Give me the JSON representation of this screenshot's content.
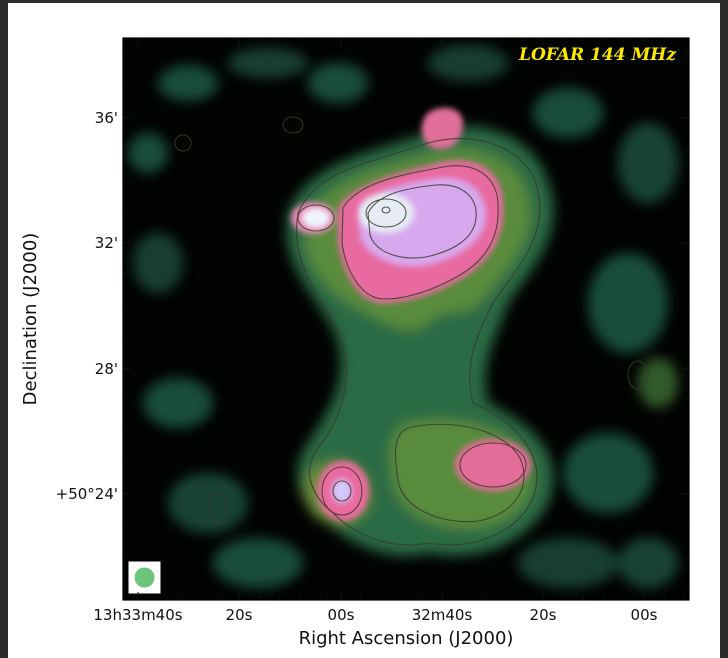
{
  "figure": {
    "panel_label": "LOFAR 144 MHz",
    "x_axis_title": "Right Ascension (J2000)",
    "y_axis_title": "Declination (J2000)",
    "x_ticks": [
      "13h33m40s",
      "20s",
      "00s",
      "32m40s",
      "20s",
      "00s"
    ],
    "y_ticks": [
      "36'",
      "32'",
      "28'",
      "+50°24'"
    ],
    "beam": {
      "color": "#6cc47a"
    },
    "colors": {
      "background": "#000000",
      "faint": "#1f5a44",
      "mid": "#7a9a3a",
      "bright": "#e86aa0",
      "peak": "#f2e8ff"
    }
  }
}
